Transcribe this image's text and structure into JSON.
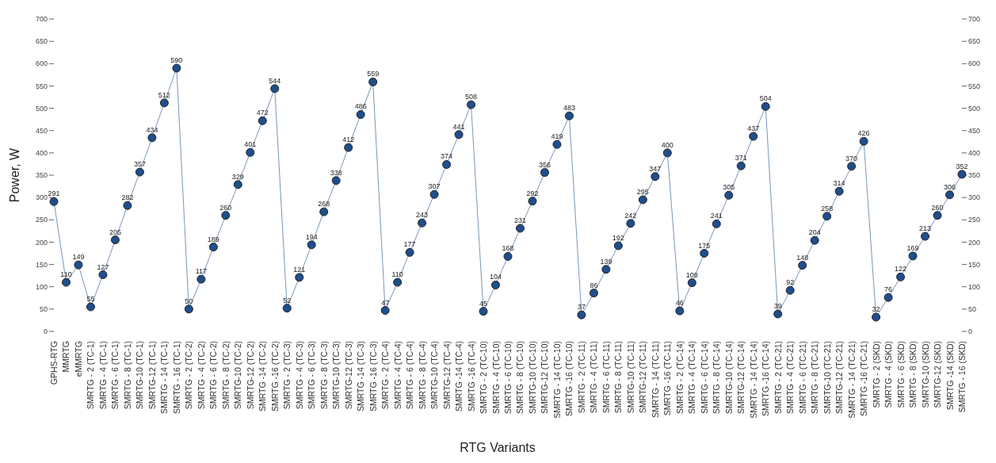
{
  "chart_data": {
    "type": "line",
    "xlabel": "RTG Variants",
    "ylabel": "Power, W",
    "categories": [
      "GPHS-RTG",
      "MMRTG",
      "eMMRTG",
      "SMRTG - 2  (TC-1)",
      "SMRTG - 4 (TC-1)",
      "SMRTG - 6 (TC-1)",
      "SMRTG - 8 (TC-1)",
      "SMRTG-10 (TC-1)",
      "SMRTG-12 (TC-1)",
      "SMRTG - 14 (TC-1)",
      "SMRTG - 16 (TC-1)",
      "SMRTG - 2 (TC-2)",
      "SMRTG - 4 (TC-2)",
      "SMRTG - 6 (TC-2)",
      "SMRTG - 8 (TC-2)",
      "SMRTG-10 (TC-2)",
      "SMRTG-12 (TC-2)",
      "SMRTG -14 (TC-2)",
      "SMRTG -16 (TC-2)",
      "SMRTG - 2 (TC-3)",
      "SMRTG - 4 (TC-3)",
      "SMRTG - 6 (TC-3)",
      "SMRTG - 8 (TC-3)",
      "SMRTG-10 (TC-3)",
      "SMRTG-12 (TC-3)",
      "SMRTG -14 (TC-3)",
      "SMRTG -16 (TC-3)",
      "SMRTG - 2 (TC-4)",
      "SMRTG - 4 (TC-4)",
      "SMRTG - 6 (TC-4)",
      "SMRTG - 8 (TC-4)",
      "SMRTG-10 (TC-4)",
      "SMRTG-12 (TC-4)",
      "SMRTG -14 (TC-4)",
      "SMRTG -16 (TC-4)",
      "SMRTG - 2 (TC-10)",
      "SMRTG - 4 (TC-10)",
      "SMRTG - 6 (TC-10)",
      "SMRTG - 8 (TC-10)",
      "SMRTG-10 (TC-10)",
      "SMRTG-12 (TC-10)",
      "SMRTG - 14 (TC-10)",
      "SMRTG -16 (TC-10)",
      "SMRTG - 2 (TC-11)",
      "SMRTG - 4 (TC-11)",
      "SMRTG - 6 (TC-11)",
      "SMRTG - 8 (TC-11)",
      "SMRTG-10 (TC-11)",
      "SMRTG-12 (TC-11)",
      "SMRTG - 14 (TC-11)",
      "SMRTG -16 (TC-11)",
      "SMRTG - 2 (TC-14)",
      "SMRTG - 4 (TC-14)",
      "SMRTG - 6 (TC-14)",
      "SMRTG - 8 (TC-14)",
      "SMRTG-10 (TC-14)",
      "SMRTG-12 (TC-14)",
      "SMRTG - 14 (TC-14)",
      "SMRTG -16 (TC-14)",
      "SMRTG - 2 (TC-21)",
      "SMRTG - 4 (TC-21)",
      "SMRTG - 6 (TC-21)",
      "SMRTG - 8 (TC-21)",
      "SMRTG-10 (TC-21)",
      "SMRTG-12 (TC-21)",
      "SMRTG - 14 (TC-21)",
      "SMRTG -16 (TC-21)",
      "SMRTG - 2 (SKD)",
      "SMRTG - 4 (SKD)",
      "SMRTG - 6 (SKD)",
      "SMRTG - 8 (SKD)",
      "SMRTG-10 (SKD)",
      "SMRTG-12 (SKD)",
      "SMRTG -14 (SKD)",
      "SMRTG - 16 (SKD)"
    ],
    "series": [
      {
        "color": "#1f4e8c",
        "values": [
          291,
          110,
          149,
          55,
          127,
          205,
          282,
          357,
          434,
          512,
          590,
          50,
          117,
          189,
          260,
          329,
          401,
          472,
          544,
          52,
          121,
          194,
          268,
          338,
          412,
          486,
          559,
          47,
          110,
          177,
          243,
          307,
          374,
          441,
          508,
          45,
          104,
          168,
          231,
          292,
          356,
          419,
          483,
          37,
          86,
          139,
          192,
          242,
          295,
          347,
          400,
          46,
          109,
          175,
          241,
          305,
          371,
          437,
          504,
          39,
          92,
          148,
          204,
          258,
          314,
          370,
          426,
          32,
          76,
          122,
          169,
          213,
          260,
          306,
          352
        ]
      }
    ],
    "ylim": [
      0,
      700
    ],
    "yticks": [
      0,
      50,
      100,
      150,
      200,
      250,
      300,
      350,
      400,
      450,
      500,
      550,
      600,
      650,
      700
    ],
    "y2lim": [
      0,
      700
    ],
    "y2ticks": [
      0,
      50,
      100,
      150,
      200,
      250,
      300,
      350,
      400,
      450,
      500,
      550,
      600,
      650,
      700
    ],
    "data_labels": true,
    "marker": "circle",
    "line_style": "solid",
    "grid": false,
    "legend": false
  }
}
